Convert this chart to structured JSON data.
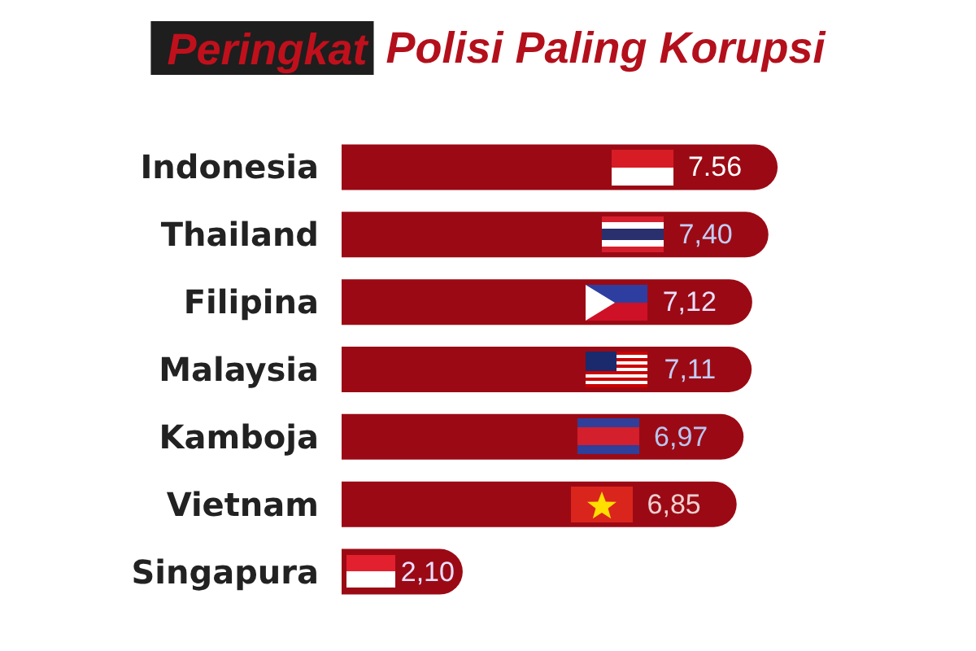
{
  "chart_data": {
    "type": "bar",
    "orientation": "horizontal",
    "title": "Peringkat Polisi Paling Korupsi",
    "categories": [
      "Indonesia",
      "Thailand",
      "Filipina",
      "Malaysia",
      "Kamboja",
      "Vietnam",
      "Singapura"
    ],
    "values": [
      7.56,
      7.4,
      7.12,
      7.11,
      6.97,
      6.85,
      2.1
    ],
    "value_labels": [
      "7.56",
      "7,40",
      "7,12",
      "7,11",
      "6,97",
      "6,85",
      "2,10"
    ],
    "color": "#9b0a14",
    "grid": false
  }
}
